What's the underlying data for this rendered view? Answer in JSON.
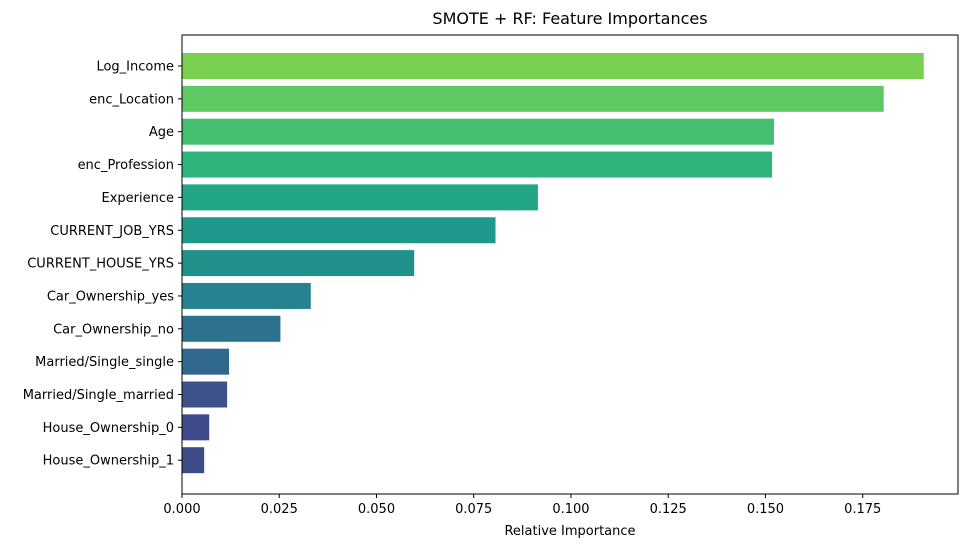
{
  "chart_data": {
    "type": "bar",
    "orientation": "horizontal",
    "title": "SMOTE + RF: Feature Importances",
    "xlabel": "Relative Importance",
    "ylabel": "",
    "xlim": [
      0,
      0.1995
    ],
    "xticks": [
      0.0,
      0.025,
      0.05,
      0.075,
      0.1,
      0.125,
      0.15,
      0.175
    ],
    "xtick_labels": [
      "0.000",
      "0.025",
      "0.050",
      "0.075",
      "0.100",
      "0.125",
      "0.150",
      "0.175"
    ],
    "grid": false,
    "categories": [
      "Log_Income",
      "enc_Location",
      "Age",
      "enc_Profession",
      "Experience",
      "CURRENT_JOB_YRS",
      "CURRENT_HOUSE_YRS",
      "Car_Ownership_yes",
      "Car_Ownership_no",
      "Married/Single_single",
      "Married/Single_married",
      "House_Ownership_0",
      "House_Ownership_1"
    ],
    "values": [
      0.1907,
      0.1804,
      0.1522,
      0.1517,
      0.0915,
      0.0806,
      0.0597,
      0.0331,
      0.0253,
      0.0121,
      0.0116,
      0.007,
      0.0057
    ],
    "colors": [
      "#7ad151",
      "#5ec962",
      "#44bf70",
      "#2fb47c",
      "#21a585",
      "#1f9a8a",
      "#21918c",
      "#26828e",
      "#2c728e",
      "#31688e",
      "#3b528b",
      "#3e4a89",
      "#3e4c8a"
    ]
  }
}
